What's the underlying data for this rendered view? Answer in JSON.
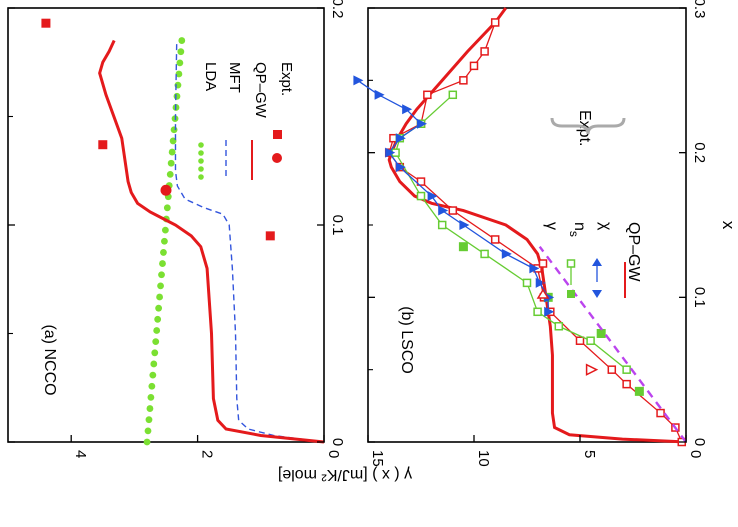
{
  "chart_data": [
    {
      "panel": "a",
      "type": "line",
      "title": "(a) NCCO",
      "xlabel": "x",
      "ylabel": "γ ( x )  [mJ/K² mole]",
      "xlim": [
        0,
        0.2
      ],
      "ylim": [
        0,
        5
      ],
      "xticks": [
        "0",
        "0.1",
        "0.2"
      ],
      "yticks": [
        "0",
        "2",
        "4"
      ],
      "legend": [
        "LDA",
        "MFT",
        "QP–GW",
        "Expt."
      ],
      "colors": {
        "lda": "#7be032",
        "mft": "#3355dd",
        "qpgw": "#e41a1c",
        "expt": "#e41a1c"
      },
      "series": [
        {
          "name": "LDA",
          "style": "dots",
          "x": [
            0,
            0.185
          ],
          "y": [
            2.8,
            2.25
          ]
        },
        {
          "name": "MFT",
          "style": "dashed",
          "x": [
            0,
            0.003,
            0.006,
            0.01,
            0.02,
            0.05,
            0.08,
            0.1,
            0.105,
            0.108,
            0.112,
            0.118,
            0.125,
            0.15,
            0.185
          ],
          "y": [
            0.0,
            0.8,
            1.2,
            1.35,
            1.38,
            1.4,
            1.45,
            1.5,
            1.6,
            1.9,
            2.2,
            2.32,
            2.35,
            2.35,
            2.33
          ]
        },
        {
          "name": "QP–GW",
          "style": "solid",
          "x": [
            0,
            0.003,
            0.006,
            0.01,
            0.02,
            0.05,
            0.08,
            0.09,
            0.095,
            0.1,
            0.103,
            0.106,
            0.11,
            0.115,
            0.12,
            0.14,
            0.16,
            0.17,
            0.175,
            0.18,
            0.185
          ],
          "y": [
            0.0,
            1.0,
            1.55,
            1.68,
            1.75,
            1.78,
            1.85,
            1.95,
            2.1,
            2.35,
            2.55,
            2.75,
            2.95,
            3.05,
            3.1,
            3.2,
            3.45,
            3.55,
            3.5,
            3.4,
            3.32
          ]
        },
        {
          "name": "Expt.",
          "style": "square",
          "x": [
            0.095,
            0.137,
            0.193
          ],
          "y": [
            0.85,
            3.5,
            4.4
          ]
        },
        {
          "name": "Expt.",
          "style": "circle",
          "x": [
            0.116
          ],
          "y": [
            2.5
          ]
        }
      ]
    },
    {
      "panel": "b",
      "type": "line",
      "title": "(b) LSCO",
      "xlabel": "x",
      "xlim": [
        0,
        0.3
      ],
      "ylim": [
        0,
        15
      ],
      "xticks": [
        "0",
        "0.1",
        "0.2",
        "0.3"
      ],
      "yticks": [
        "0",
        "5",
        "10",
        "15"
      ],
      "legend_group": "Expt.",
      "legend": [
        "γ",
        "n_s",
        "χ",
        "QP–GW"
      ],
      "colors": {
        "gamma": "#e41a1c",
        "ns": "#66cc33",
        "chi": "#2255dd",
        "qpgw": "#e41a1c",
        "dashed": "#bb44ee"
      },
      "series": [
        {
          "name": "QP–GW",
          "style": "solid",
          "x": [
            0,
            0.002,
            0.005,
            0.01,
            0.02,
            0.04,
            0.06,
            0.08,
            0.1,
            0.12,
            0.13,
            0.14,
            0.15,
            0.16,
            0.165,
            0.17,
            0.18,
            0.19,
            0.195,
            0.2,
            0.21,
            0.22,
            0.23,
            0.25,
            0.27,
            0.29,
            0.3
          ],
          "y": [
            0.0,
            3.0,
            5.5,
            6.2,
            6.3,
            6.3,
            6.3,
            6.4,
            6.6,
            6.8,
            7.0,
            7.5,
            8.5,
            10.5,
            12.0,
            12.8,
            13.5,
            13.9,
            14.0,
            13.9,
            13.6,
            13.2,
            12.7,
            11.5,
            10.3,
            9.0,
            8.5
          ]
        },
        {
          "name": "γ",
          "style": "open-square",
          "x": [
            0.0,
            0.01,
            0.02,
            0.04,
            0.05,
            0.07,
            0.09,
            0.1,
            0.12,
            0.14,
            0.16,
            0.18,
            0.19,
            0.2,
            0.21,
            0.22,
            0.24,
            0.25,
            0.26,
            0.27,
            0.29
          ],
          "y": [
            0.2,
            0.5,
            1.2,
            2.8,
            3.5,
            5.0,
            6.4,
            6.7,
            7.0,
            9.0,
            11.0,
            12.5,
            13.5,
            14.0,
            13.8,
            12.5,
            12.2,
            10.5,
            10.0,
            9.5,
            9.0
          ]
        },
        {
          "name": "γ",
          "style": "open-triangle",
          "x": [
            0.05
          ],
          "y": [
            4.5
          ]
        },
        {
          "name": "n_s",
          "style": "open-square",
          "x": [
            0.05,
            0.07,
            0.08,
            0.09,
            0.11,
            0.13,
            0.15,
            0.17,
            0.2,
            0.21,
            0.22,
            0.24
          ],
          "y": [
            2.8,
            4.5,
            6.0,
            7.0,
            7.5,
            9.5,
            11.5,
            12.5,
            13.7,
            13.5,
            12.5,
            11.0
          ]
        },
        {
          "name": "n_s",
          "style": "filled-square",
          "x": [
            0.035,
            0.075,
            0.1,
            0.135
          ],
          "y": [
            2.2,
            4.0,
            6.5,
            10.5
          ]
        },
        {
          "name": "χ",
          "style": "filled-triangle",
          "x": [
            0.09,
            0.1,
            0.11,
            0.12,
            0.13,
            0.15,
            0.16,
            0.17,
            0.19,
            0.2,
            0.21,
            0.22,
            0.23,
            0.24,
            0.25
          ],
          "y": [
            6.5,
            6.5,
            6.9,
            7.2,
            8.5,
            10.5,
            11.5,
            12.0,
            13.5,
            14.0,
            13.5,
            12.5,
            13.2,
            14.5,
            15.5
          ]
        },
        {
          "name": "fit",
          "style": "dashed",
          "x": [
            0.0,
            0.135
          ],
          "y": [
            0.0,
            6.9
          ]
        }
      ]
    }
  ]
}
